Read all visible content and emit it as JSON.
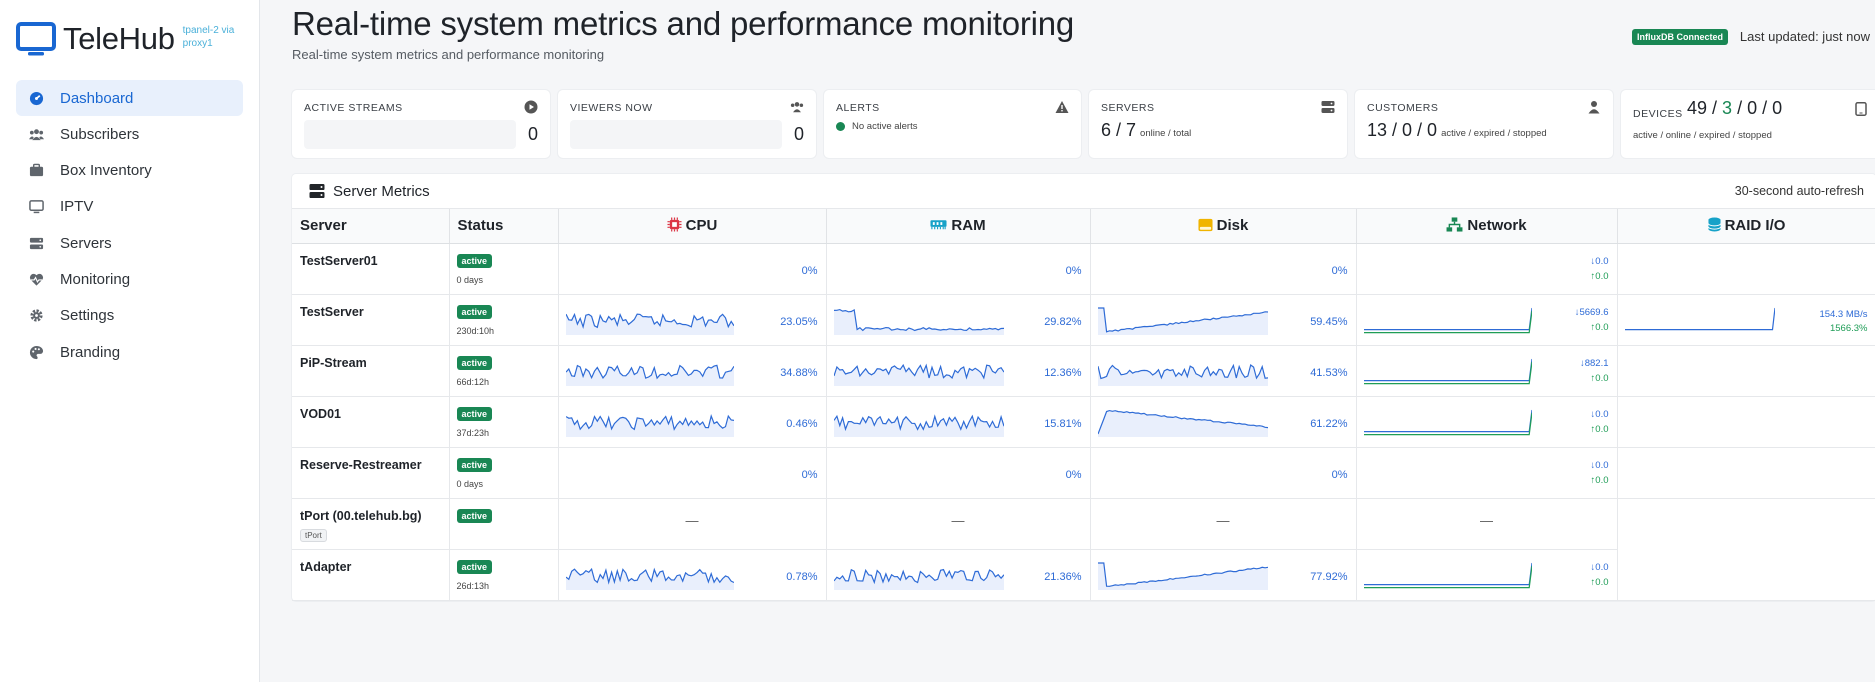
{
  "brand": {
    "name": "TeleHub",
    "sub_line1": "tpanel-2 via",
    "sub_line2": "proxy1"
  },
  "sidebar": {
    "items": [
      {
        "label": "Dashboard",
        "icon": "dashboard-icon",
        "active": true
      },
      {
        "label": "Subscribers",
        "icon": "users-icon"
      },
      {
        "label": "Box Inventory",
        "icon": "box-icon"
      },
      {
        "label": "IPTV",
        "icon": "tv-icon"
      },
      {
        "label": "Servers",
        "icon": "server-icon"
      },
      {
        "label": "Monitoring",
        "icon": "heartbeat-icon"
      },
      {
        "label": "Settings",
        "icon": "gear-icon"
      },
      {
        "label": "Branding",
        "icon": "palette-icon"
      }
    ]
  },
  "header": {
    "title": "Real-time system metrics and performance monitoring",
    "subtitle": "Real-time system metrics and performance monitoring",
    "connection_badge": "InfluxDB Connected",
    "last_updated": "Last updated: just now"
  },
  "stats": {
    "active_streams": {
      "title": "ACTIVE STREAMS",
      "value": "0",
      "icon": "play-circle-icon"
    },
    "viewers_now": {
      "title": "VIEWERS NOW",
      "value": "0",
      "icon": "users-icon"
    },
    "alerts": {
      "title": "ALERTS",
      "text": "No active alerts",
      "icon": "warning-icon"
    },
    "servers": {
      "title": "SERVERS",
      "value": "6 / 7",
      "note": "online / total",
      "icon": "server-icon"
    },
    "customers": {
      "title": "CUSTOMERS",
      "value": "13 / 0 / 0",
      "note": "active / expired / stopped",
      "icon": "user-icon"
    },
    "devices": {
      "title": "DEVICES",
      "v1": "49",
      "sep1": " / ",
      "v2": "3",
      "sep2": " / ",
      "v3": "0",
      "sep3": " / ",
      "v4": "0",
      "note": "active / online / expired / stopped",
      "icon": "tablet-icon"
    }
  },
  "metrics_panel": {
    "title": "Server Metrics",
    "refresh_note": "30-second auto-refresh",
    "columns": {
      "server": "Server",
      "status": "Status",
      "cpu": "CPU",
      "ram": "RAM",
      "disk": "Disk",
      "network": "Network",
      "raid": "RAID I/O"
    },
    "rows": [
      {
        "name": "TestServer01",
        "status": "active",
        "uptime": "0 days",
        "cpu": "0%",
        "ram": "0%",
        "disk": "0%",
        "net_down": "↓0.0",
        "net_up": "↑0.0",
        "spark": false
      },
      {
        "name": "TestServer",
        "status": "active",
        "uptime": "230d:10h",
        "cpu": "23.05%",
        "ram": "29.82%",
        "disk": "59.45%",
        "net_down": "↓5669.6",
        "net_up": "↑0.0",
        "raid_read": "154.3 MB/s",
        "raid_write": "1566.3%",
        "spark": true
      },
      {
        "name": "PiP-Stream",
        "status": "active",
        "uptime": "66d:12h",
        "cpu": "34.88%",
        "ram": "12.36%",
        "disk": "41.53%",
        "net_down": "↓882.1",
        "net_up": "↑0.0",
        "spark": true
      },
      {
        "name": "VOD01",
        "status": "active",
        "uptime": "37d:23h",
        "cpu": "0.46%",
        "ram": "15.81%",
        "disk": "61.22%",
        "net_down": "↓0.0",
        "net_up": "↑0.0",
        "spark": true
      },
      {
        "name": "Reserve-Restreamer",
        "status": "active",
        "uptime": "0 days",
        "cpu": "0%",
        "ram": "0%",
        "disk": "0%",
        "net_down": "↓0.0",
        "net_up": "↑0.0",
        "spark": false
      },
      {
        "name": "tPort (00.telehub.bg)",
        "tag": "tPort",
        "status": "active",
        "dash": "—"
      },
      {
        "name": "tAdapter",
        "status": "active",
        "uptime": "26d:13h",
        "cpu": "0.78%",
        "ram": "21.36%",
        "disk": "77.92%",
        "net_down": "↓0.0",
        "net_up": "↑0.0",
        "spark": true
      }
    ]
  },
  "colors": {
    "accent": "#1967d2",
    "success": "#198754",
    "metric_blue": "#2e6bd6",
    "upload_green": "#1f9d57"
  }
}
